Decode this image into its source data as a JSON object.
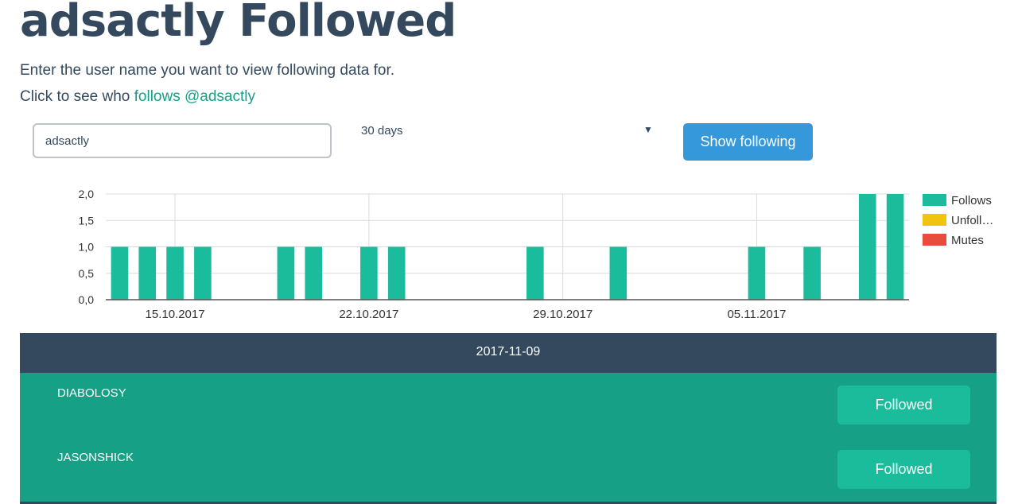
{
  "title": "adsactly Followed",
  "intro": "Enter the user name you want to view following data for.",
  "click_text": "Click to see who ",
  "click_link": "follows @adsactly",
  "form": {
    "username_value": "adsactly",
    "period_value": "30 days",
    "show_button": "Show following"
  },
  "colors": {
    "follows": "#1abc9c",
    "unfollows": "#f1c40f",
    "mutes": "#e74c3c",
    "primary": "#3498db",
    "dark": "#34495e",
    "teal_dark": "#16a085"
  },
  "chart_data": {
    "type": "bar",
    "x_type": "date",
    "x_range": [
      "2017-10-13",
      "2017-11-10"
    ],
    "ylim": [
      0,
      2
    ],
    "y_ticks": [
      "0,0",
      "0,5",
      "1,0",
      "1,5",
      "2,0"
    ],
    "x_ticks": [
      {
        "date": "2017-10-15",
        "label": "15.10.2017"
      },
      {
        "date": "2017-10-22",
        "label": "22.10.2017"
      },
      {
        "date": "2017-10-29",
        "label": "29.10.2017"
      },
      {
        "date": "2017-11-05",
        "label": "05.11.2017"
      }
    ],
    "legend_position": "right",
    "series": [
      {
        "name": "Follows",
        "color": "#1abc9c",
        "points": [
          {
            "date": "2017-10-13",
            "value": 1
          },
          {
            "date": "2017-10-14",
            "value": 1
          },
          {
            "date": "2017-10-15",
            "value": 1
          },
          {
            "date": "2017-10-16",
            "value": 1
          },
          {
            "date": "2017-10-19",
            "value": 1
          },
          {
            "date": "2017-10-20",
            "value": 1
          },
          {
            "date": "2017-10-22",
            "value": 1
          },
          {
            "date": "2017-10-23",
            "value": 1
          },
          {
            "date": "2017-10-28",
            "value": 1
          },
          {
            "date": "2017-10-31",
            "value": 1
          },
          {
            "date": "2017-11-05",
            "value": 1
          },
          {
            "date": "2017-11-07",
            "value": 1
          },
          {
            "date": "2017-11-09",
            "value": 2
          },
          {
            "date": "2017-11-10",
            "value": 2
          }
        ]
      },
      {
        "name": "Unfoll…",
        "color": "#f1c40f",
        "points": []
      },
      {
        "name": "Mutes",
        "color": "#e74c3c",
        "points": []
      }
    ]
  },
  "day": {
    "date": "2017-11-09",
    "items": [
      {
        "name": "DIABOLOSY",
        "action": "Followed"
      },
      {
        "name": "JASONSHICK",
        "action": "Followed"
      }
    ]
  }
}
